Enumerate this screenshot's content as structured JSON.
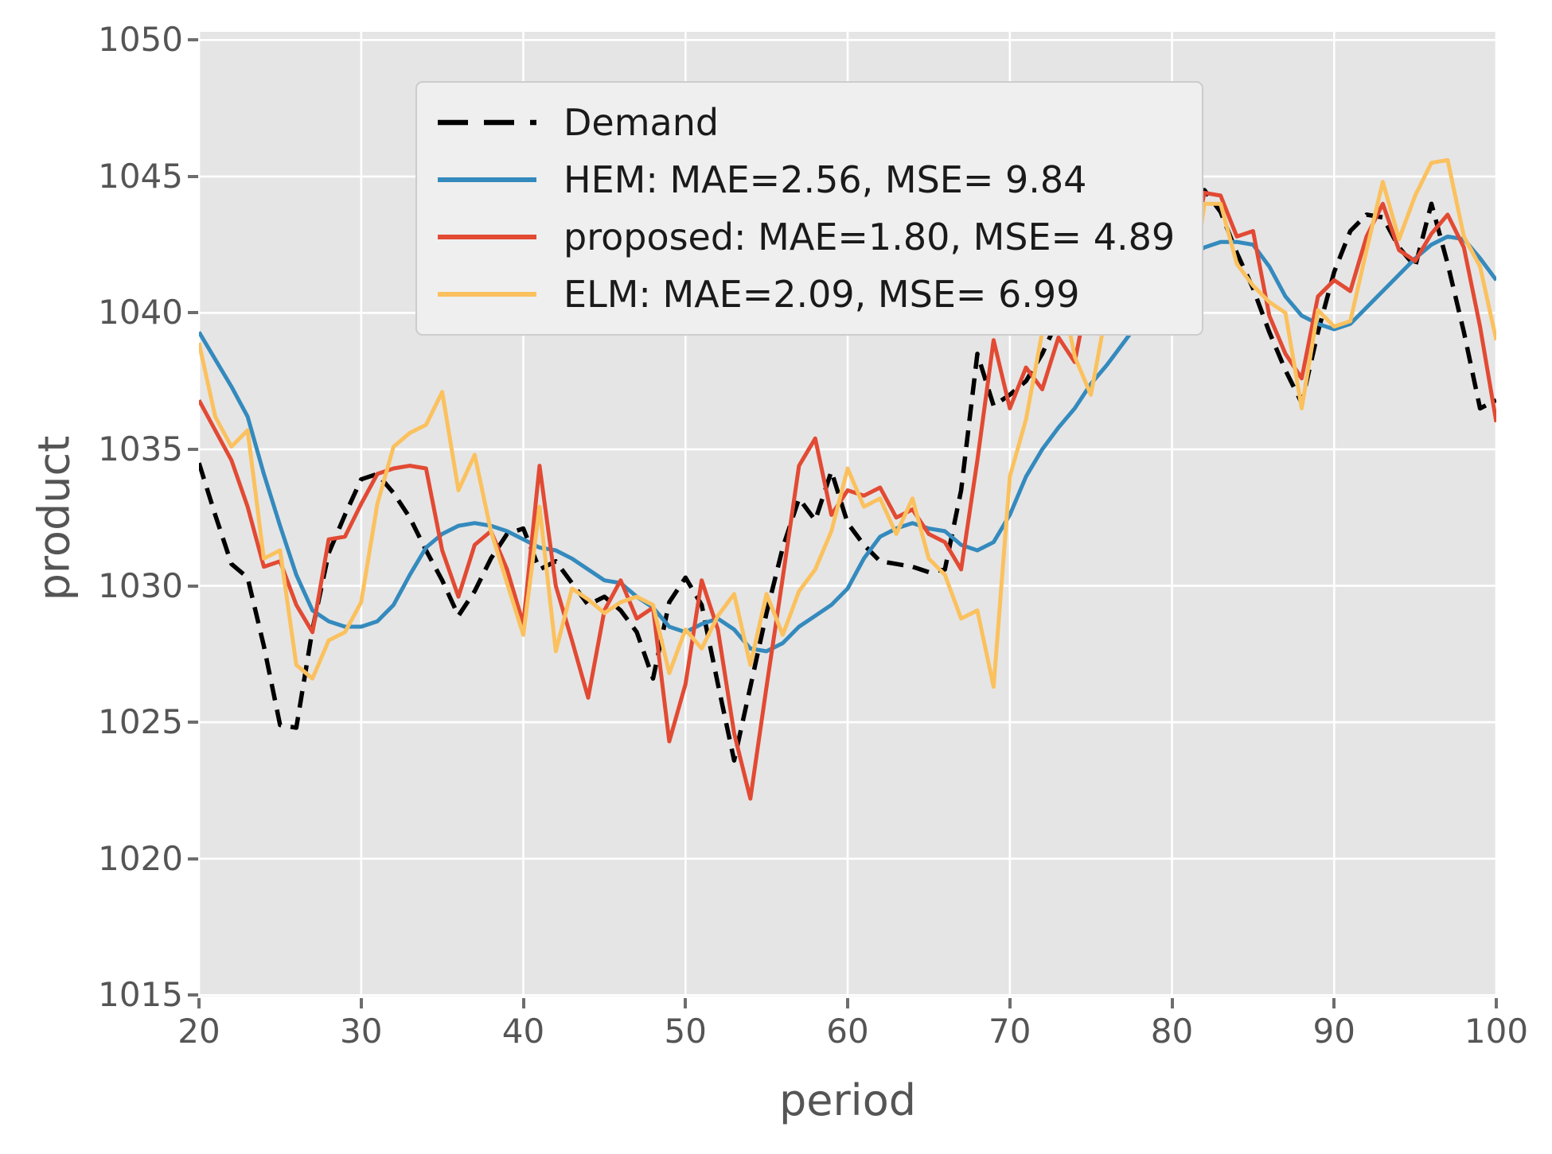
{
  "axes": {
    "background": "#e5e5e5",
    "grid_color": "#ffffff",
    "tick_color": "#555555",
    "label_color": "#555555"
  },
  "chart_data": {
    "type": "line",
    "title": "",
    "xlabel": "period",
    "ylabel": "product",
    "xlim": [
      20,
      100
    ],
    "ylim": [
      1014.95,
      1050.3
    ],
    "xticks": [
      20,
      30,
      40,
      50,
      60,
      70,
      80,
      90,
      100
    ],
    "yticks": [
      1015,
      1020,
      1025,
      1030,
      1035,
      1040,
      1045,
      1050
    ],
    "grid": true,
    "legend_position": "upper-left",
    "x": [
      20,
      21,
      22,
      23,
      24,
      25,
      26,
      27,
      28,
      29,
      30,
      31,
      32,
      33,
      34,
      35,
      36,
      37,
      38,
      39,
      40,
      41,
      42,
      43,
      44,
      45,
      46,
      47,
      48,
      49,
      50,
      51,
      52,
      53,
      54,
      55,
      56,
      57,
      58,
      59,
      60,
      61,
      62,
      63,
      64,
      65,
      66,
      67,
      68,
      69,
      70,
      71,
      72,
      73,
      74,
      75,
      76,
      77,
      78,
      79,
      80,
      81,
      82,
      83,
      84,
      85,
      86,
      87,
      88,
      89,
      90,
      91,
      92,
      93,
      94,
      95,
      96,
      97,
      98,
      99,
      100
    ],
    "series": [
      {
        "name": "Demand",
        "color": "#000000",
        "dash": "21 12",
        "width": 5.5,
        "values": [
          1034.5,
          1032.6,
          1030.8,
          1030.3,
          1027.8,
          1024.9,
          1024.8,
          1028.4,
          1031.2,
          1032.6,
          1033.9,
          1034.1,
          1033.4,
          1032.5,
          1031.3,
          1030.2,
          1028.9,
          1029.8,
          1031.0,
          1031.9,
          1032.1,
          1030.6,
          1030.9,
          1030.1,
          1029.3,
          1029.6,
          1029.1,
          1028.3,
          1026.6,
          1029.4,
          1030.3,
          1029.3,
          1026.4,
          1023.6,
          1026.3,
          1029.0,
          1031.4,
          1033.2,
          1032.4,
          1034.2,
          1032.3,
          1031.5,
          1030.9,
          1030.8,
          1030.7,
          1030.5,
          1030.6,
          1033.5,
          1038.5,
          1036.6,
          1037.0,
          1037.5,
          1038.5,
          1039.8,
          1042.2,
          1043.3,
          1042.4,
          1041.9,
          1043.6,
          1044.9,
          1043.3,
          1041.8,
          1044.5,
          1043.7,
          1042.2,
          1040.9,
          1039.3,
          1037.9,
          1036.7,
          1039.3,
          1041.5,
          1043.0,
          1043.6,
          1043.5,
          1042.4,
          1041.7,
          1044.0,
          1041.8,
          1039.3,
          1036.5,
          1036.8
        ]
      },
      {
        "name": "HEM: MAE=2.56, MSE= 9.84",
        "color": "#348ABD",
        "dash": null,
        "width": 5,
        "values": [
          1039.3,
          1038.3,
          1037.3,
          1036.2,
          1034.1,
          1032.2,
          1030.4,
          1029.1,
          1028.7,
          1028.5,
          1028.5,
          1028.7,
          1029.3,
          1030.4,
          1031.4,
          1031.9,
          1032.2,
          1032.3,
          1032.2,
          1032.0,
          1031.7,
          1031.4,
          1031.3,
          1031.0,
          1030.6,
          1030.2,
          1030.1,
          1029.6,
          1029.2,
          1028.5,
          1028.3,
          1028.6,
          1028.8,
          1028.4,
          1027.7,
          1027.6,
          1027.9,
          1028.5,
          1028.9,
          1029.3,
          1029.9,
          1031.0,
          1031.8,
          1032.1,
          1032.3,
          1032.1,
          1032.0,
          1031.5,
          1031.3,
          1031.6,
          1032.6,
          1034.0,
          1035.0,
          1035.8,
          1036.5,
          1037.4,
          1038.1,
          1038.9,
          1039.7,
          1040.6,
          1041.5,
          1042.0,
          1042.4,
          1042.6,
          1042.6,
          1042.5,
          1041.7,
          1040.6,
          1039.9,
          1039.6,
          1039.4,
          1039.6,
          1040.2,
          1040.8,
          1041.4,
          1042.0,
          1042.5,
          1042.8,
          1042.7,
          1042.0,
          1041.2
        ]
      },
      {
        "name": "proposed: MAE=1.80, MSE= 4.89",
        "color": "#E24A33",
        "dash": null,
        "width": 5,
        "values": [
          1036.8,
          1035.7,
          1034.6,
          1032.9,
          1030.7,
          1030.9,
          1029.3,
          1028.3,
          1031.7,
          1031.8,
          1033.0,
          1034.1,
          1034.3,
          1034.4,
          1034.3,
          1031.3,
          1029.6,
          1031.5,
          1032.0,
          1030.6,
          1028.6,
          1034.4,
          1030.0,
          1028.0,
          1025.9,
          1029.1,
          1030.2,
          1028.8,
          1029.2,
          1024.3,
          1026.4,
          1030.2,
          1028.4,
          1024.6,
          1022.2,
          1026.3,
          1030.3,
          1034.4,
          1035.4,
          1032.6,
          1033.5,
          1033.3,
          1033.6,
          1032.5,
          1032.8,
          1031.9,
          1031.6,
          1030.6,
          1034.6,
          1039.0,
          1036.5,
          1038.0,
          1037.2,
          1039.1,
          1038.2,
          1041.2,
          1040.9,
          1041.6,
          1041.2,
          1044.1,
          1045.8,
          1041.6,
          1044.4,
          1044.3,
          1042.8,
          1043.0,
          1039.9,
          1038.5,
          1037.6,
          1040.6,
          1041.2,
          1040.8,
          1042.8,
          1044.0,
          1042.3,
          1041.9,
          1042.9,
          1043.6,
          1042.4,
          1039.5,
          1036.0
        ]
      },
      {
        "name": "ELM: MAE=2.09, MSE= 6.99",
        "color": "#FBC15E",
        "dash": null,
        "width": 5,
        "values": [
          1038.9,
          1036.2,
          1035.1,
          1035.7,
          1031.0,
          1031.3,
          1027.1,
          1026.6,
          1028.0,
          1028.3,
          1029.4,
          1033.0,
          1035.1,
          1035.6,
          1035.9,
          1037.1,
          1033.5,
          1034.8,
          1032.0,
          1030.1,
          1028.2,
          1032.9,
          1027.6,
          1029.9,
          1029.5,
          1029.0,
          1029.4,
          1029.6,
          1029.3,
          1026.8,
          1028.4,
          1027.7,
          1028.9,
          1029.7,
          1027.1,
          1029.7,
          1028.2,
          1029.8,
          1030.6,
          1032.0,
          1034.3,
          1032.9,
          1033.2,
          1031.9,
          1033.2,
          1031.0,
          1030.4,
          1028.8,
          1029.1,
          1026.3,
          1034.0,
          1036.1,
          1039.3,
          1041.4,
          1038.4,
          1037.0,
          1040.2,
          1041.9,
          1040.9,
          1040.4,
          1043.7,
          1039.8,
          1044.0,
          1044.0,
          1041.8,
          1041.0,
          1040.4,
          1040.0,
          1036.5,
          1040.1,
          1039.5,
          1039.7,
          1042.3,
          1044.8,
          1042.7,
          1044.3,
          1045.5,
          1045.6,
          1042.8,
          1041.7,
          1039.0
        ]
      }
    ]
  }
}
